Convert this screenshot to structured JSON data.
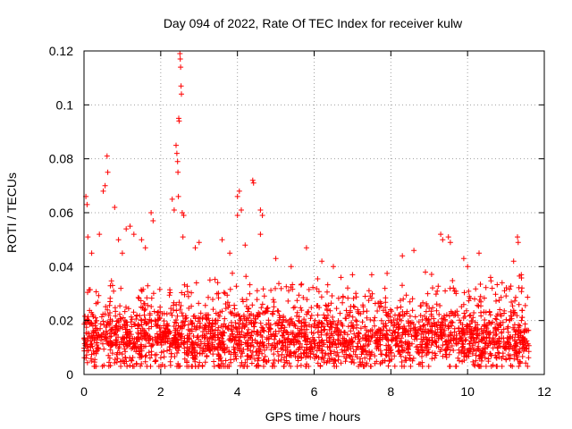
{
  "chart_data": {
    "type": "scatter",
    "title": "Day 094 of 2022, Rate Of TEC Index for receiver kulw",
    "xlabel": "GPS time / hours",
    "ylabel": "ROTI / TECUs",
    "xlim": [
      0,
      12
    ],
    "ylim": [
      0,
      0.12
    ],
    "x_ticks": [
      "0",
      "2",
      "4",
      "6",
      "8",
      "10",
      "12"
    ],
    "y_ticks": [
      "0",
      "0.02",
      "0.04",
      "0.06",
      "0.08",
      "0.1",
      "0.12"
    ],
    "x_tick_values": [
      0,
      2,
      4,
      6,
      8,
      10,
      12
    ],
    "y_tick_values": [
      0,
      0.02,
      0.04,
      0.06,
      0.08,
      0.1,
      0.12
    ],
    "grid": true,
    "marker": "+",
    "marker_color": "#ff0000",
    "data_range_x": [
      0,
      11.6
    ],
    "background_band": {
      "baseline": 0.013,
      "spread": 0.008,
      "max_typical": 0.03
    },
    "spikes": [
      {
        "x": 0.05,
        "y": 0.066
      },
      {
        "x": 0.08,
        "y": 0.063
      },
      {
        "x": 0.1,
        "y": 0.051
      },
      {
        "x": 0.5,
        "y": 0.068
      },
      {
        "x": 0.6,
        "y": 0.081
      },
      {
        "x": 0.62,
        "y": 0.075
      },
      {
        "x": 0.55,
        "y": 0.07
      },
      {
        "x": 0.8,
        "y": 0.062
      },
      {
        "x": 0.9,
        "y": 0.05
      },
      {
        "x": 1.1,
        "y": 0.054
      },
      {
        "x": 1.2,
        "y": 0.055
      },
      {
        "x": 1.5,
        "y": 0.05
      },
      {
        "x": 1.6,
        "y": 0.047
      },
      {
        "x": 1.75,
        "y": 0.06
      },
      {
        "x": 1.8,
        "y": 0.057
      },
      {
        "x": 2.3,
        "y": 0.065
      },
      {
        "x": 2.35,
        "y": 0.061
      },
      {
        "x": 2.4,
        "y": 0.085
      },
      {
        "x": 2.42,
        "y": 0.082
      },
      {
        "x": 2.44,
        "y": 0.079
      },
      {
        "x": 2.45,
        "y": 0.075
      },
      {
        "x": 2.46,
        "y": 0.066
      },
      {
        "x": 2.47,
        "y": 0.095
      },
      {
        "x": 2.48,
        "y": 0.094
      },
      {
        "x": 2.5,
        "y": 0.119
      },
      {
        "x": 2.51,
        "y": 0.117
      },
      {
        "x": 2.52,
        "y": 0.114
      },
      {
        "x": 2.53,
        "y": 0.107
      },
      {
        "x": 2.54,
        "y": 0.104
      },
      {
        "x": 2.56,
        "y": 0.06
      },
      {
        "x": 2.6,
        "y": 0.059
      },
      {
        "x": 2.58,
        "y": 0.051
      },
      {
        "x": 2.9,
        "y": 0.047
      },
      {
        "x": 3.6,
        "y": 0.05
      },
      {
        "x": 4.0,
        "y": 0.066
      },
      {
        "x": 4.05,
        "y": 0.068
      },
      {
        "x": 4.1,
        "y": 0.061
      },
      {
        "x": 4.0,
        "y": 0.059
      },
      {
        "x": 4.4,
        "y": 0.072
      },
      {
        "x": 4.42,
        "y": 0.071
      },
      {
        "x": 4.6,
        "y": 0.061
      },
      {
        "x": 4.65,
        "y": 0.059
      },
      {
        "x": 4.6,
        "y": 0.052
      },
      {
        "x": 4.2,
        "y": 0.048
      },
      {
        "x": 5.8,
        "y": 0.047
      },
      {
        "x": 6.5,
        "y": 0.04
      },
      {
        "x": 7.5,
        "y": 0.037
      },
      {
        "x": 8.3,
        "y": 0.044
      },
      {
        "x": 8.6,
        "y": 0.046
      },
      {
        "x": 9.3,
        "y": 0.052
      },
      {
        "x": 9.35,
        "y": 0.05
      },
      {
        "x": 9.5,
        "y": 0.051
      },
      {
        "x": 9.55,
        "y": 0.049
      },
      {
        "x": 9.9,
        "y": 0.043
      },
      {
        "x": 10.3,
        "y": 0.045
      },
      {
        "x": 11.3,
        "y": 0.051
      },
      {
        "x": 11.32,
        "y": 0.049
      },
      {
        "x": 11.2,
        "y": 0.042
      },
      {
        "x": 11.4,
        "y": 0.037
      },
      {
        "x": 0.2,
        "y": 0.045
      },
      {
        "x": 0.4,
        "y": 0.052
      },
      {
        "x": 1.0,
        "y": 0.045
      },
      {
        "x": 1.3,
        "y": 0.052
      },
      {
        "x": 3.0,
        "y": 0.049
      },
      {
        "x": 3.8,
        "y": 0.045
      },
      {
        "x": 5.0,
        "y": 0.043
      },
      {
        "x": 5.4,
        "y": 0.04
      },
      {
        "x": 6.2,
        "y": 0.042
      },
      {
        "x": 6.7,
        "y": 0.036
      },
      {
        "x": 7.0,
        "y": 0.037
      },
      {
        "x": 8.9,
        "y": 0.038
      },
      {
        "x": 10.0,
        "y": 0.04
      },
      {
        "x": 10.6,
        "y": 0.036
      },
      {
        "x": 10.9,
        "y": 0.034
      }
    ]
  }
}
